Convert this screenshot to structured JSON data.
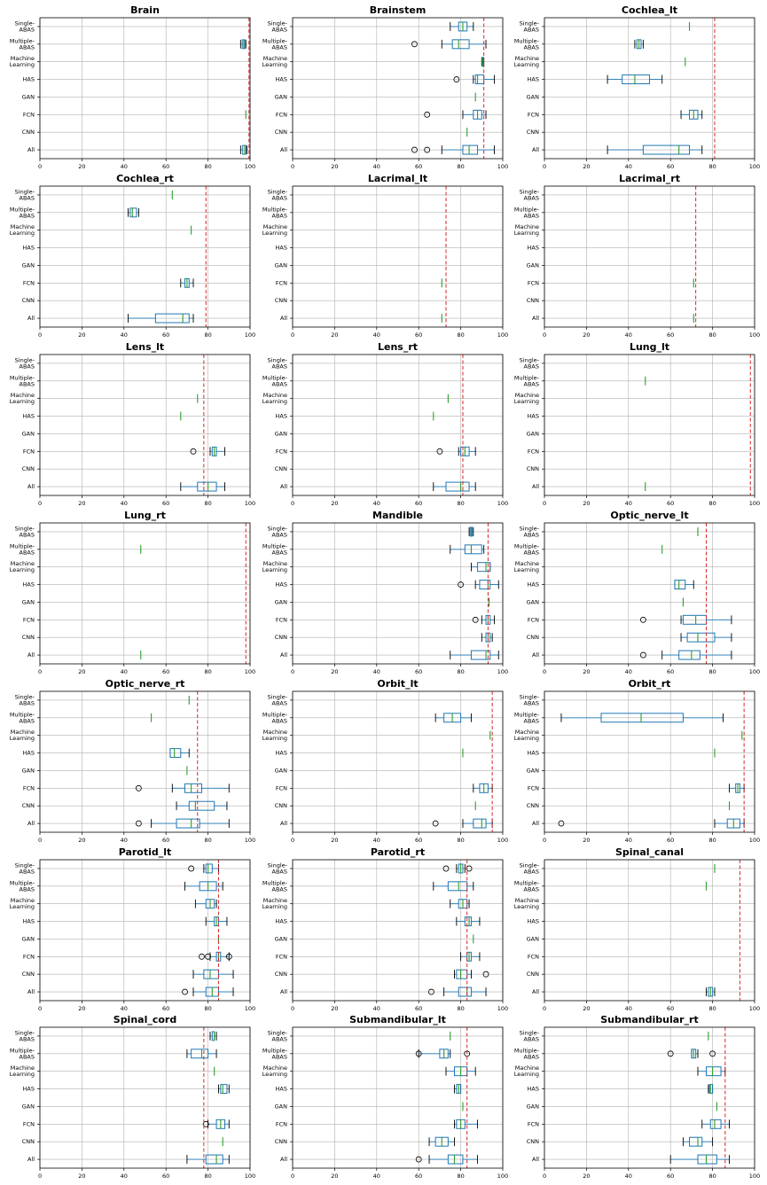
{
  "chart_data": {
    "type": "boxplot-grid",
    "categories": [
      "Single-ABAS",
      "Multiple-ABAS",
      "Machine Learning",
      "HAS",
      "GAN",
      "FCN",
      "CNN",
      "All"
    ],
    "category_lines": [
      [
        "Single-",
        "ABAS"
      ],
      [
        "Multiple-",
        "ABAS"
      ],
      [
        "Machine",
        "Learning"
      ],
      [
        "HAS"
      ],
      [
        "GAN"
      ],
      [
        "FCN"
      ],
      [
        "CNN"
      ],
      [
        "All"
      ]
    ],
    "xlim": [
      0,
      100
    ],
    "xticks": [
      0,
      20,
      40,
      60,
      80,
      100
    ],
    "grid": true,
    "colors": {
      "box": "#1f77b4",
      "median": "#2ca02c",
      "ref": "#d62728",
      "grid": "#b0b0b0"
    },
    "panels": [
      {
        "title": "Brain",
        "ref": 99.5,
        "boxes": {
          "Multiple-ABAS": {
            "whislo": 95.5,
            "q1": 96.3,
            "med": 97,
            "q3": 97.5,
            "whishi": 98
          },
          "FCN": {
            "med": 98
          },
          "All": {
            "whislo": 95.5,
            "q1": 96.5,
            "med": 97.5,
            "q3": 98,
            "whishi": 98.5
          }
        }
      },
      {
        "title": "Brainstem",
        "ref": 91,
        "boxes": {
          "Single-ABAS": {
            "whislo": 75,
            "q1": 79,
            "med": 81,
            "q3": 83,
            "whishi": 86
          },
          "Multiple-ABAS": {
            "whislo": 71,
            "q1": 76,
            "med": 79,
            "q3": 84,
            "whishi": 92,
            "fliers": [
              58
            ]
          },
          "Machine Learning": {
            "whislo": 90,
            "q1": 90.2,
            "med": 90.5,
            "q3": 90.8,
            "whishi": 91
          },
          "HAS": {
            "whislo": 86,
            "q1": 87,
            "med": 88,
            "q3": 91,
            "whishi": 96,
            "fliers": [
              78
            ]
          },
          "GAN": {
            "med": 87
          },
          "FCN": {
            "whislo": 81,
            "q1": 86,
            "med": 88,
            "q3": 90,
            "whishi": 92,
            "fliers": [
              64
            ]
          },
          "CNN": {
            "med": 83
          },
          "All": {
            "whislo": 71,
            "q1": 81,
            "med": 84,
            "q3": 88,
            "whishi": 96,
            "fliers": [
              58,
              64
            ]
          }
        }
      },
      {
        "title": "Cochlea_lt",
        "ref": 81,
        "boxes": {
          "Single-ABAS": {
            "med": 69
          },
          "Multiple-ABAS": {
            "whislo": 43,
            "q1": 44,
            "med": 45,
            "q3": 46,
            "whishi": 47
          },
          "Machine Learning": {
            "med": 67
          },
          "HAS": {
            "whislo": 30,
            "q1": 37,
            "med": 43,
            "q3": 50,
            "whishi": 56
          },
          "FCN": {
            "whislo": 65,
            "q1": 69,
            "med": 71,
            "q3": 73,
            "whishi": 75
          },
          "All": {
            "whislo": 30,
            "q1": 47,
            "med": 64,
            "q3": 69,
            "whishi": 75
          }
        }
      },
      {
        "title": "Cochlea_rt",
        "ref": 79,
        "boxes": {
          "Single-ABAS": {
            "med": 63
          },
          "Multiple-ABAS": {
            "whislo": 42,
            "q1": 43,
            "med": 44,
            "q3": 46,
            "whishi": 47
          },
          "Machine Learning": {
            "med": 72
          },
          "FCN": {
            "whislo": 67,
            "q1": 69,
            "med": 70,
            "q3": 71,
            "whishi": 73
          },
          "All": {
            "whislo": 42,
            "q1": 55,
            "med": 68,
            "q3": 71,
            "whishi": 73
          }
        }
      },
      {
        "title": "Lacrimal_lt",
        "ref": 73,
        "boxes": {
          "FCN": {
            "med": 71
          },
          "All": {
            "med": 71
          }
        }
      },
      {
        "title": "Lacrimal_rt",
        "ref": 72,
        "boxes": {
          "FCN": {
            "med": 71
          },
          "All": {
            "med": 71
          }
        }
      },
      {
        "title": "Lens_lt",
        "ref": 78,
        "boxes": {
          "Machine Learning": {
            "med": 75
          },
          "HAS": {
            "med": 67
          },
          "FCN": {
            "whislo": 81,
            "q1": 82,
            "med": 83,
            "q3": 84,
            "whishi": 88,
            "fliers": [
              73
            ]
          },
          "All": {
            "whislo": 67,
            "q1": 75,
            "med": 80,
            "q3": 84,
            "whishi": 88
          }
        }
      },
      {
        "title": "Lens_rt",
        "ref": 81,
        "boxes": {
          "Machine Learning": {
            "med": 74
          },
          "HAS": {
            "med": 67
          },
          "FCN": {
            "whislo": 79,
            "q1": 80,
            "med": 82,
            "q3": 84,
            "whishi": 87,
            "fliers": [
              70
            ]
          },
          "All": {
            "whislo": 67,
            "q1": 73,
            "med": 80,
            "q3": 84,
            "whishi": 87
          }
        }
      },
      {
        "title": "Lung_lt",
        "ref": 98,
        "boxes": {
          "Multiple-ABAS": {
            "med": 48
          },
          "All": {
            "med": 48
          }
        }
      },
      {
        "title": "Lung_rt",
        "ref": 98,
        "boxes": {
          "Multiple-ABAS": {
            "med": 48
          },
          "All": {
            "med": 48
          }
        }
      },
      {
        "title": "Mandible",
        "ref": 93,
        "boxes": {
          "Single-ABAS": {
            "whislo": 84,
            "q1": 84.5,
            "med": 85,
            "q3": 85.5,
            "whishi": 86
          },
          "Multiple-ABAS": {
            "whislo": 75,
            "q1": 82,
            "med": 85,
            "q3": 90,
            "whishi": 91
          },
          "Machine Learning": {
            "whislo": 85,
            "q1": 88,
            "med": 92,
            "q3": 94,
            "whishi": 94
          },
          "HAS": {
            "whislo": 87,
            "q1": 89,
            "med": 93,
            "q3": 94,
            "whishi": 98,
            "fliers": [
              80
            ]
          },
          "GAN": {
            "med": 93.5
          },
          "FCN": {
            "whislo": 90,
            "q1": 92,
            "med": 93,
            "q3": 94,
            "whishi": 96,
            "fliers": [
              87
            ]
          },
          "CNN": {
            "whislo": 90,
            "q1": 92,
            "med": 93,
            "q3": 94,
            "whishi": 95
          },
          "All": {
            "whislo": 75,
            "q1": 85,
            "med": 92,
            "q3": 94,
            "whishi": 98
          }
        }
      },
      {
        "title": "Optic_nerve_lt",
        "ref": 77,
        "boxes": {
          "Single-ABAS": {
            "med": 73
          },
          "Multiple-ABAS": {
            "med": 56
          },
          "HAS": {
            "whislo": 62,
            "q1": 62,
            "med": 64,
            "q3": 67,
            "whishi": 71
          },
          "GAN": {
            "med": 66
          },
          "FCN": {
            "whislo": 65,
            "q1": 66,
            "med": 72,
            "q3": 77,
            "whishi": 89,
            "fliers": [
              47
            ]
          },
          "CNN": {
            "whislo": 65,
            "q1": 68,
            "med": 73,
            "q3": 81,
            "whishi": 89
          },
          "All": {
            "whislo": 56,
            "q1": 64,
            "med": 70,
            "q3": 74,
            "whishi": 89,
            "fliers": [
              47
            ]
          }
        }
      },
      {
        "title": "Optic_nerve_rt",
        "ref": 75,
        "boxes": {
          "Single-ABAS": {
            "med": 71
          },
          "Multiple-ABAS": {
            "med": 53
          },
          "HAS": {
            "whislo": 62,
            "q1": 62,
            "med": 64,
            "q3": 67,
            "whishi": 71
          },
          "GAN": {
            "med": 70
          },
          "FCN": {
            "whislo": 63,
            "q1": 69,
            "med": 72,
            "q3": 77,
            "whishi": 90,
            "fliers": [
              47
            ]
          },
          "CNN": {
            "whislo": 65,
            "q1": 71,
            "med": 74,
            "q3": 83,
            "whishi": 89
          },
          "All": {
            "whislo": 53,
            "q1": 65,
            "med": 72,
            "q3": 76,
            "whishi": 90,
            "fliers": [
              47
            ]
          }
        }
      },
      {
        "title": "Orbit_lt",
        "ref": 95,
        "boxes": {
          "Multiple-ABAS": {
            "whislo": 68,
            "q1": 72,
            "med": 76,
            "q3": 80,
            "whishi": 85
          },
          "Machine Learning": {
            "med": 94
          },
          "HAS": {
            "med": 81
          },
          "FCN": {
            "whislo": 86,
            "q1": 89,
            "med": 91,
            "q3": 93,
            "whishi": 95
          },
          "CNN": {
            "med": 87
          },
          "All": {
            "whislo": 81,
            "q1": 86,
            "med": 90,
            "q3": 92,
            "whishi": 95,
            "fliers": [
              68
            ]
          }
        }
      },
      {
        "title": "Orbit_rt",
        "ref": 95,
        "boxes": {
          "Multiple-ABAS": {
            "whislo": 8,
            "q1": 27,
            "med": 46,
            "q3": 66,
            "whishi": 85
          },
          "Machine Learning": {
            "med": 94
          },
          "HAS": {
            "med": 81
          },
          "FCN": {
            "whislo": 88,
            "q1": 91,
            "med": 92,
            "q3": 93,
            "whishi": 95
          },
          "CNN": {
            "med": 88
          },
          "All": {
            "whislo": 81,
            "q1": 87,
            "med": 90,
            "q3": 93,
            "whishi": 95,
            "fliers": [
              8
            ]
          }
        }
      },
      {
        "title": "Parotid_lt",
        "ref": 85,
        "boxes": {
          "Single-ABAS": {
            "whislo": 78,
            "q1": 79,
            "med": 80,
            "q3": 82,
            "whishi": 85,
            "fliers": [
              72
            ]
          },
          "Multiple-ABAS": {
            "whislo": 69,
            "q1": 76,
            "med": 80,
            "q3": 84,
            "whishi": 87
          },
          "Machine Learning": {
            "whislo": 74,
            "q1": 79,
            "med": 81,
            "q3": 83,
            "whishi": 84
          },
          "HAS": {
            "whislo": 79,
            "q1": 83,
            "med": 84,
            "q3": 85,
            "whishi": 89
          },
          "GAN": {
            "med": 85
          },
          "FCN": {
            "whislo": 81,
            "q1": 84,
            "med": 85,
            "q3": 86,
            "whishi": 90,
            "fliers": [
              77,
              80,
              90
            ]
          },
          "CNN": {
            "whislo": 73,
            "q1": 78,
            "med": 81,
            "q3": 85,
            "whishi": 92
          },
          "All": {
            "whislo": 73,
            "q1": 79,
            "med": 82,
            "q3": 85,
            "whishi": 92,
            "fliers": [
              69
            ]
          }
        }
      },
      {
        "title": "Parotid_rt",
        "ref": 83,
        "boxes": {
          "Single-ABAS": {
            "whislo": 78,
            "q1": 79,
            "med": 80,
            "q3": 81,
            "whishi": 82,
            "fliers": [
              73,
              84
            ]
          },
          "Multiple-ABAS": {
            "whislo": 67,
            "q1": 74,
            "med": 79,
            "q3": 83,
            "whishi": 86
          },
          "Machine Learning": {
            "whislo": 75,
            "q1": 79,
            "med": 81,
            "q3": 83,
            "whishi": 84
          },
          "HAS": {
            "whislo": 78,
            "q1": 82,
            "med": 84,
            "q3": 85,
            "whishi": 89
          },
          "GAN": {
            "med": 86
          },
          "FCN": {
            "whislo": 80,
            "q1": 83,
            "med": 84,
            "q3": 85,
            "whishi": 89
          },
          "CNN": {
            "whislo": 77,
            "q1": 78,
            "med": 80,
            "q3": 83,
            "whishi": 85,
            "fliers": [
              92
            ]
          },
          "All": {
            "whislo": 72,
            "q1": 79,
            "med": 83,
            "q3": 85,
            "whishi": 92,
            "fliers": [
              66
            ]
          }
        }
      },
      {
        "title": "Spinal_canal",
        "ref": 93,
        "boxes": {
          "Single-ABAS": {
            "med": 81
          },
          "Multiple-ABAS": {
            "med": 77
          },
          "All": {
            "whislo": 77,
            "q1": 78,
            "med": 79,
            "q3": 80,
            "whishi": 81
          }
        }
      },
      {
        "title": "Spinal_cord",
        "ref": 78,
        "boxes": {
          "Single-ABAS": {
            "whislo": 81,
            "q1": 82,
            "med": 83,
            "q3": 83,
            "whishi": 84
          },
          "Multiple-ABAS": {
            "whislo": 70,
            "q1": 72,
            "med": 77,
            "q3": 80,
            "whishi": 84
          },
          "Machine Learning": {
            "med": 83
          },
          "HAS": {
            "whislo": 85,
            "q1": 86,
            "med": 87,
            "q3": 89,
            "whishi": 90
          },
          "FCN": {
            "whislo": 80,
            "q1": 84,
            "med": 86,
            "q3": 88,
            "whishi": 90,
            "fliers": [
              79
            ]
          },
          "CNN": {
            "med": 87
          },
          "All": {
            "whislo": 70,
            "q1": 79,
            "med": 84,
            "q3": 87,
            "whishi": 90
          }
        }
      },
      {
        "title": "Submandibular_lt",
        "ref": 83,
        "boxes": {
          "Single-ABAS": {
            "med": 75
          },
          "Multiple-ABAS": {
            "whislo": 60,
            "q1": 70,
            "med": 72,
            "q3": 74,
            "whishi": 75,
            "fliers": [
              60,
              83
            ]
          },
          "Machine Learning": {
            "whislo": 73,
            "q1": 77,
            "med": 80,
            "q3": 83,
            "whishi": 87
          },
          "HAS": {
            "whislo": 77,
            "q1": 78,
            "med": 79,
            "q3": 80,
            "whishi": 80
          },
          "GAN": {
            "med": 81
          },
          "FCN": {
            "whislo": 77,
            "q1": 78,
            "med": 80,
            "q3": 82,
            "whishi": 88
          },
          "CNN": {
            "whislo": 65,
            "q1": 68,
            "med": 71,
            "q3": 74,
            "whishi": 77
          },
          "All": {
            "whislo": 65,
            "q1": 74,
            "med": 77,
            "q3": 81,
            "whishi": 88,
            "fliers": [
              60
            ]
          }
        }
      },
      {
        "title": "Submandibular_rt",
        "ref": 86,
        "boxes": {
          "Single-ABAS": {
            "med": 78
          },
          "Multiple-ABAS": {
            "whislo": 70,
            "q1": 70,
            "med": 71,
            "q3": 72,
            "whishi": 73,
            "fliers": [
              60,
              80
            ]
          },
          "Machine Learning": {
            "whislo": 73,
            "q1": 77,
            "med": 80,
            "q3": 84,
            "whishi": 86
          },
          "HAS": {
            "whislo": 78,
            "q1": 78.5,
            "med": 79,
            "q3": 80,
            "whishi": 80
          },
          "GAN": {
            "med": 82
          },
          "FCN": {
            "whislo": 75,
            "q1": 79,
            "med": 81,
            "q3": 84,
            "whishi": 88
          },
          "CNN": {
            "whislo": 66,
            "q1": 69,
            "med": 73,
            "q3": 75,
            "whishi": 80
          },
          "All": {
            "whislo": 60,
            "q1": 73,
            "med": 77,
            "q3": 82,
            "whishi": 88
          }
        }
      }
    ]
  }
}
